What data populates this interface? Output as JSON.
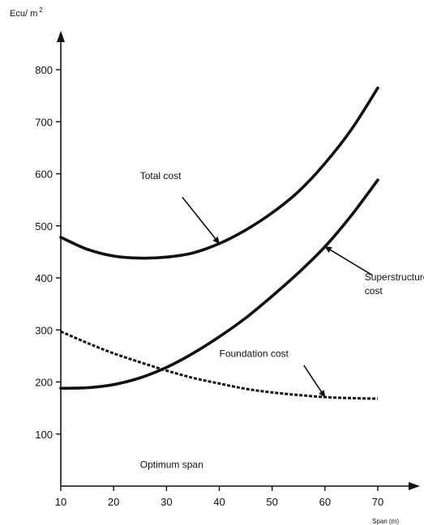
{
  "chart_data": {
    "type": "line",
    "title": "",
    "xlabel": "Span (m)",
    "ylabel": "Ecu/ m",
    "ylabel_superscript": "2",
    "xlim": [
      10,
      70
    ],
    "ylim": [
      0,
      800
    ],
    "x_ticks": [
      10,
      20,
      30,
      40,
      50,
      60,
      70
    ],
    "y_ticks": [
      100,
      200,
      300,
      400,
      500,
      600,
      700,
      800
    ],
    "grid": false,
    "legend": "none",
    "series": [
      {
        "name": "Total cost",
        "style": "solid-thick",
        "x": [
          10,
          15,
          20,
          25,
          30,
          35,
          40,
          45,
          50,
          55,
          60,
          65,
          70
        ],
        "y": [
          478,
          455,
          442,
          438,
          440,
          448,
          466,
          492,
          525,
          566,
          620,
          685,
          765
        ]
      },
      {
        "name": "Superstructure cost",
        "style": "solid-thick",
        "x": [
          10,
          15,
          20,
          25,
          30,
          35,
          40,
          45,
          50,
          55,
          60,
          65,
          70
        ],
        "y": [
          188,
          189,
          195,
          208,
          228,
          255,
          287,
          323,
          365,
          410,
          460,
          520,
          588
        ]
      },
      {
        "name": "Foundation cost",
        "style": "dashed",
        "x": [
          10,
          15,
          20,
          25,
          30,
          35,
          40,
          45,
          50,
          55,
          60,
          65,
          70
        ],
        "y": [
          297,
          275,
          255,
          238,
          222,
          208,
          197,
          187,
          180,
          175,
          171,
          169,
          168
        ]
      }
    ],
    "annotations": [
      {
        "lines": [
          "Total cost"
        ],
        "x": 25,
        "y": 590,
        "anchor": "start",
        "arrow_to": [
          40,
          466
        ],
        "arrow_from": [
          33,
          555
        ]
      },
      {
        "lines": [
          "Superstructure",
          "cost"
        ],
        "x": 67.5,
        "y": 395,
        "anchor": "start",
        "arrow_to": [
          60,
          460
        ],
        "arrow_from": [
          69,
          405
        ]
      },
      {
        "lines": [
          "Foundation cost"
        ],
        "x": 40,
        "y": 248,
        "anchor": "start",
        "arrow_to": [
          60,
          171
        ],
        "arrow_from": [
          56,
          232
        ]
      },
      {
        "lines": [
          "Optimum span"
        ],
        "x": 25,
        "y": 35,
        "anchor": "start"
      }
    ]
  }
}
